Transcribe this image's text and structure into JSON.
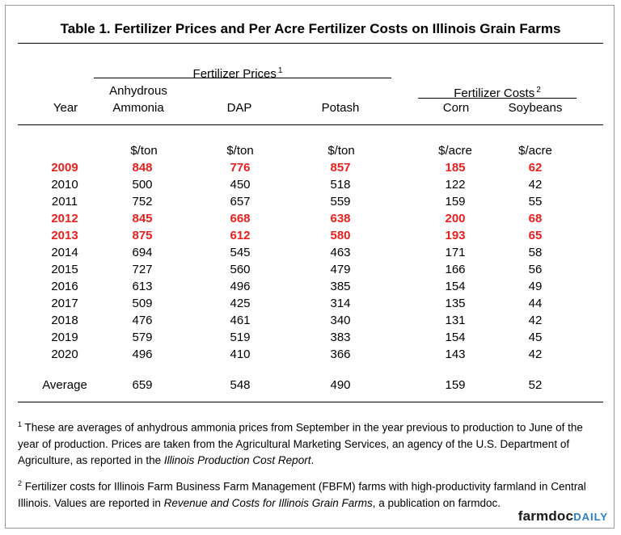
{
  "title": "Table 1.  Fertilizer Prices and Per Acre Fertilizer Costs on Illinois Grain Farms",
  "group_headers": {
    "prices": "Fertilizer Prices",
    "prices_sup": "1",
    "costs": "Fertilizer Costs",
    "costs_sup": "2"
  },
  "columns": {
    "year": "Year",
    "anhydrous_line1": "Anhydrous",
    "anhydrous_line2": "Ammonia",
    "dap": "DAP",
    "potash": "Potash",
    "corn": "Corn",
    "soybeans": "Soybeans"
  },
  "units": [
    "$/ton",
    "$/ton",
    "$/ton",
    "$/acre",
    "$/acre"
  ],
  "rows": [
    {
      "year": "2009",
      "highlight": true,
      "values": [
        "848",
        "776",
        "857",
        "185",
        "62"
      ]
    },
    {
      "year": "2010",
      "highlight": false,
      "values": [
        "500",
        "450",
        "518",
        "122",
        "42"
      ]
    },
    {
      "year": "2011",
      "highlight": false,
      "values": [
        "752",
        "657",
        "559",
        "159",
        "55"
      ]
    },
    {
      "year": "2012",
      "highlight": true,
      "values": [
        "845",
        "668",
        "638",
        "200",
        "68"
      ]
    },
    {
      "year": "2013",
      "highlight": true,
      "values": [
        "875",
        "612",
        "580",
        "193",
        "65"
      ]
    },
    {
      "year": "2014",
      "highlight": false,
      "values": [
        "694",
        "545",
        "463",
        "171",
        "58"
      ]
    },
    {
      "year": "2015",
      "highlight": false,
      "values": [
        "727",
        "560",
        "479",
        "166",
        "56"
      ]
    },
    {
      "year": "2016",
      "highlight": false,
      "values": [
        "613",
        "496",
        "385",
        "154",
        "49"
      ]
    },
    {
      "year": "2017",
      "highlight": false,
      "values": [
        "509",
        "425",
        "314",
        "135",
        "44"
      ]
    },
    {
      "year": "2018",
      "highlight": false,
      "values": [
        "476",
        "461",
        "340",
        "131",
        "42"
      ]
    },
    {
      "year": "2019",
      "highlight": false,
      "values": [
        "579",
        "519",
        "383",
        "154",
        "45"
      ]
    },
    {
      "year": "2020",
      "highlight": false,
      "values": [
        "496",
        "410",
        "366",
        "143",
        "42"
      ]
    }
  ],
  "average": {
    "label": "Average",
    "values": [
      "659",
      "548",
      "490",
      "159",
      "52"
    ]
  },
  "footnote1": {
    "sup": "1",
    "text": " These are averages of anhydrous ammonia prices from September in the year previous to production to June of the year of production.  Prices are taken from the Agricultural Marketing Services, an agency of the U.S. Department of Agriculture, as reported in the ",
    "italic": "Illinois Production Cost Report",
    "end": "."
  },
  "footnote2": {
    "sup": "2",
    "text": " Fertilizer costs for Illinois Farm Business Farm Management (FBFM) farms with high-productivity farmland in Central Illinois.  Values are reported in ",
    "italic": "Revenue and Costs for Illinois Grain Farms",
    "end": ", a publication on farmdoc."
  },
  "brand": {
    "part1": "farmdoc",
    "part2": "DAILY"
  },
  "colors": {
    "highlight": "#e8201f",
    "brand_blue": "#2a7fc4"
  }
}
